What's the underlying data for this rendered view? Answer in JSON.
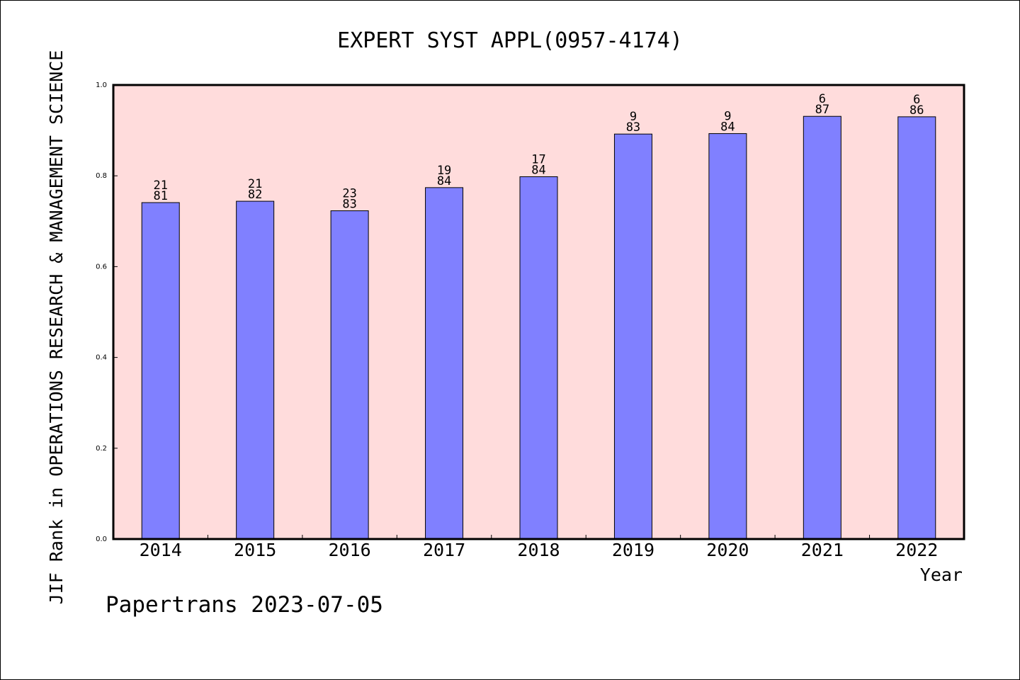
{
  "chart_data": {
    "type": "bar",
    "title": "EXPERT SYST APPL(0957-4174)",
    "xlabel": "Year",
    "ylabel": "JIF Rank in OPERATIONS RESEARCH & MANAGEMENT SCIENCE",
    "ylim": [
      0,
      1.0
    ],
    "yticks": [
      "0.0",
      "0.2",
      "0.4",
      "0.6",
      "0.8",
      "1.0"
    ],
    "categories": [
      "2014",
      "2015",
      "2016",
      "2017",
      "2018",
      "2019",
      "2020",
      "2021",
      "2022"
    ],
    "values": [
      0.741,
      0.744,
      0.723,
      0.774,
      0.798,
      0.892,
      0.893,
      0.931,
      0.93
    ],
    "rank": [
      "21",
      "21",
      "23",
      "19",
      "17",
      "9",
      "9",
      "6",
      "6"
    ],
    "total": [
      "81",
      "82",
      "83",
      "84",
      "84",
      "83",
      "84",
      "87",
      "86"
    ],
    "grid": false,
    "colors": {
      "bar": "#8080ff",
      "plot_bg": "#ffdcdc"
    }
  },
  "footer": {
    "watermark": "Papertrans 2023-07-05"
  }
}
